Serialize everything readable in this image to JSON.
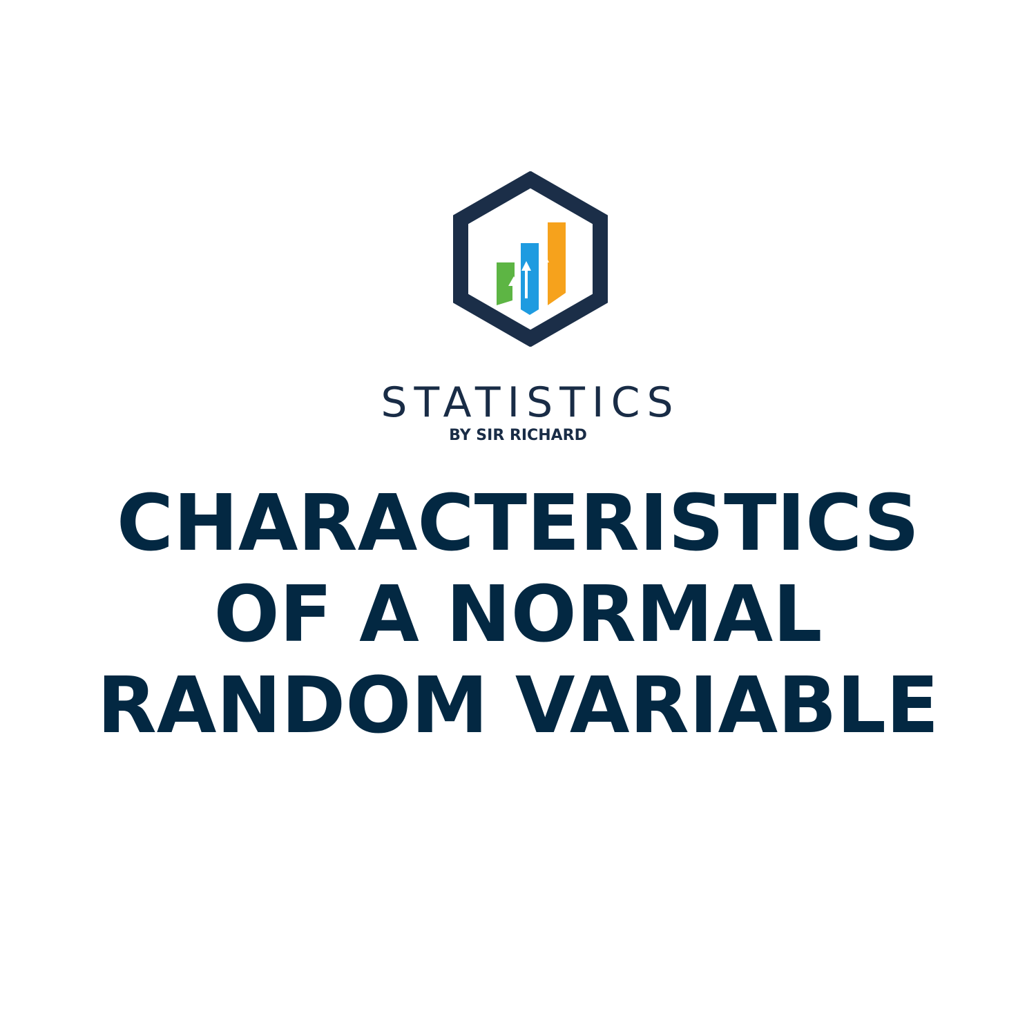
{
  "logo": {
    "icon": "hexagon-bar-chart-logo",
    "colors": {
      "frame": "#1b2e48",
      "bar_green": "#5db544",
      "bar_blue": "#1e9be0",
      "bar_orange": "#f6a21c",
      "arrow": "#ffffff"
    }
  },
  "brand": {
    "name": "STATISTICS",
    "tagline": "BY SIR RICHARD",
    "color": "#192c46"
  },
  "headline": {
    "lines": [
      "CHARACTERISTICS",
      "OF A NORMAL",
      "RANDOM VARIABLE"
    ],
    "color": "#032842"
  }
}
